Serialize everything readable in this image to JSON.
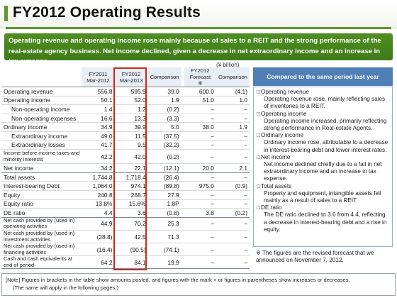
{
  "title": "FY2012 Operating Results",
  "banner": "Operating revenue and operating income rose mainly because of sales to a REIT and the strong performance of the real-estate agency business. Net income declined, given a decrease in net extraordinary income and an increase in tax expense.",
  "unit": "(¥ billion)",
  "table": {
    "headers": {
      "fy2011": "FY2011\nMar-2012",
      "fy2012": "FY2012\nMar-2013",
      "comparison": "Comparison",
      "forecast": "FY2012\nForecast\n※",
      "comparison2": "Comparison"
    },
    "rows": [
      {
        "label": "Operating revenue",
        "fy2011": "556.8",
        "fy2012": "595.9",
        "cmp": "39.0",
        "fc": "600.0",
        "cmp2": "(4.1)"
      },
      {
        "label": "Operating income",
        "fy2011": "50.1",
        "fy2012": "52.0",
        "cmp": "1.9",
        "fc": "51.0",
        "cmp2": "1.0"
      },
      {
        "label": "Non-operating income",
        "fy2011": "1.4",
        "fy2012": "1.2",
        "cmp": "(0.2)",
        "fc": "–",
        "cmp2": "–"
      },
      {
        "label": "Non-operating expenses",
        "fy2011": "16.6",
        "fy2012": "13.3",
        "cmp": "(3.3)",
        "fc": "–",
        "cmp2": "–"
      },
      {
        "label": "Ordinary income",
        "fy2011": "34.9",
        "fy2012": "39.9",
        "cmp": "5.0",
        "fc": "38.0",
        "cmp2": "1.9"
      },
      {
        "label": "Extraordinary income",
        "fy2011": "49.0",
        "fy2012": "11.5",
        "cmp": "(37.5)",
        "fc": "–",
        "cmp2": "–"
      },
      {
        "label": "Extraordinary losses",
        "fy2011": "41.7",
        "fy2012": "9.5",
        "cmp": "(32.2)",
        "fc": "–",
        "cmp2": "–"
      },
      {
        "label": "Income before income taxes and minority interests",
        "fy2011": "42.2",
        "fy2012": "42.0",
        "cmp": "(0.2)",
        "fc": "–",
        "cmp2": "–"
      },
      {
        "label": "Net income",
        "fy2011": "34.2",
        "fy2012": "22.1",
        "cmp": "(12.1)",
        "fc": "20.0",
        "cmp2": "2.1"
      },
      {
        "label": "Total assets",
        "fy2011": "1,744.8",
        "fy2012": "1,718.4",
        "cmp": "(26.4)",
        "fc": "–",
        "cmp2": "–"
      },
      {
        "label": "Interest-bearing Debt",
        "fy2011": "1,064.0",
        "fy2012": "974.1",
        "cmp": "(89.8)",
        "fc": "975.0",
        "cmp2": "(0.9)"
      },
      {
        "label": "Equity",
        "fy2011": "240.8",
        "fy2012": "268.7",
        "cmp": "27.9",
        "fc": "–",
        "cmp2": "–"
      },
      {
        "label": "Equity ratio",
        "fy2011": "13.8%",
        "fy2012": "15.6%",
        "cmp": "1.8P",
        "fc": "–",
        "cmp2": "–"
      },
      {
        "label": "DE ratio",
        "fy2011": "4.4",
        "fy2012": "3.6",
        "cmp": "(0.8)",
        "fc": "3.8",
        "cmp2": "(0.2)"
      },
      {
        "label": "Net cash provided by (used in) operating activities",
        "fy2011": "44.9",
        "fy2012": "70.2",
        "cmp": "25.3",
        "fc": "–",
        "cmp2": "–"
      },
      {
        "label": "Net cash provided by (used in) investment activities",
        "fy2011": "(28.8)",
        "fy2012": "42.5",
        "cmp": "71.3",
        "fc": "–",
        "cmp2": "–"
      },
      {
        "label": "Net cash provided by (used in) financing activities",
        "fy2011": "(16.4)",
        "fy2012": "(90.5)",
        "cmp": "(74.1)",
        "fc": "–",
        "cmp2": "–"
      },
      {
        "label": "Cash and cash equivalents at end of period",
        "fy2011": "64.2",
        "fy2012": "84.1",
        "cmp": "19.9",
        "fc": "–",
        "cmp2": "–"
      }
    ]
  },
  "comparison_panel": {
    "header": "Compared to the same period last year",
    "items": [
      {
        "head": "Operating revenue",
        "text": "Operating revenue rose, mainly reflecting sales of inventories to a REIT."
      },
      {
        "head": "Operating income",
        "text": "Operating income increased, primarily reflecting strong performance in Real-estate Agents."
      },
      {
        "head": "Ordinary income",
        "text": "Ordinary income rose, attributable to a decrease in interest-bearing debt and lower interest rates."
      },
      {
        "head": "Net income",
        "text": "Net income declined chiefly due to a fall in net extraordinary income and an increase in tax expense."
      },
      {
        "head": "Total assets",
        "text": "Property and equipment, intangible assets fell mainly as a result of sales to a REIT."
      },
      {
        "head": "DE ratio",
        "text": "The DE ratio declined to 3.6 from 4.4, reflecting a decrease in interest-bearing debt and a rise in equity."
      }
    ]
  },
  "forecast_note": "※ The figures are the revised forecast that we announced on November 7, 2012.",
  "footer": {
    "line1": "[Note] Figures in brackets in the table show amounts posted, and figures with the mark + or figures in parentheses show increases or decreases.",
    "line2": "(The same will apply in the following pages.)"
  },
  "colors": {
    "accent_green": "#5a9a2a",
    "header_blue": "#4f7fb6",
    "highlight_red": "#cc2a1c"
  }
}
